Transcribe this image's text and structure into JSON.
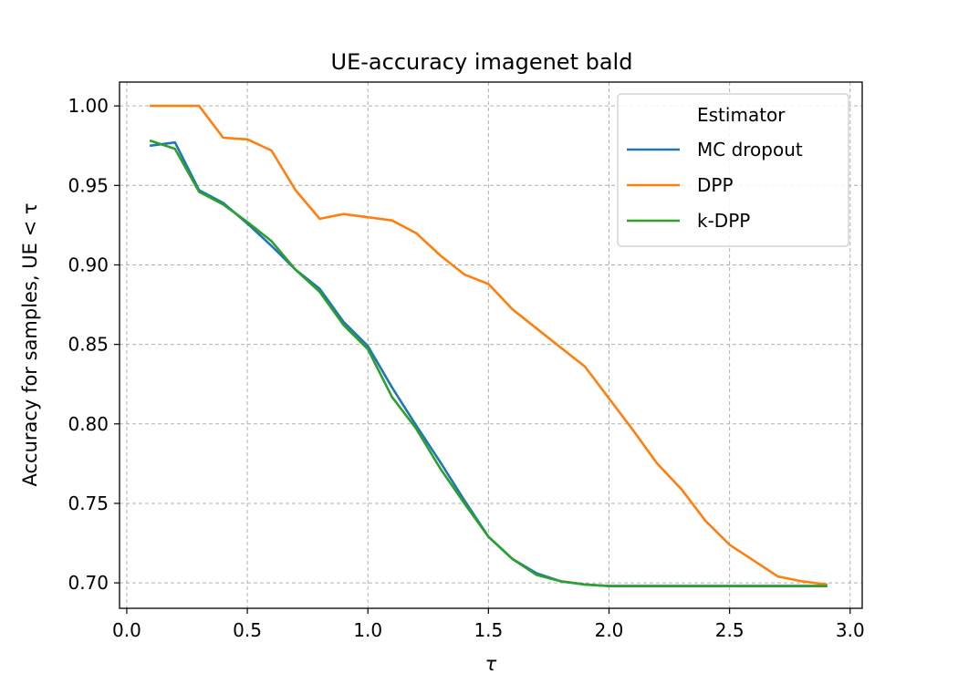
{
  "chart_data": {
    "type": "line",
    "title": "UE-accuracy imagenet bald",
    "xlabel": "τ",
    "ylabel": "Accuracy for samples, UE < τ",
    "xlim": [
      -0.03,
      3.05
    ],
    "ylim": [
      0.684,
      1.015
    ],
    "xticks": [
      "0.0",
      "0.5",
      "1.0",
      "1.5",
      "2.0",
      "2.5",
      "3.0"
    ],
    "xtick_values": [
      0,
      0.5,
      1.0,
      1.5,
      2.0,
      2.5,
      3.0
    ],
    "yticks": [
      "0.70",
      "0.75",
      "0.80",
      "0.85",
      "0.90",
      "0.95",
      "1.00"
    ],
    "ytick_values": [
      0.7,
      0.75,
      0.8,
      0.85,
      0.9,
      0.95,
      1.0
    ],
    "grid": true,
    "legend": {
      "title": "Estimator",
      "placement": "top-right"
    },
    "x": [
      0.1,
      0.2,
      0.3,
      0.4,
      0.5,
      0.6,
      0.7,
      0.8,
      0.9,
      1.0,
      1.1,
      1.2,
      1.3,
      1.4,
      1.5,
      1.6,
      1.7,
      1.8,
      1.9,
      2.0,
      2.1,
      2.2,
      2.3,
      2.4,
      2.5,
      2.6,
      2.7,
      2.8,
      2.9
    ],
    "series": [
      {
        "name": "MC dropout",
        "color": "#1f77b4",
        "values": [
          0.975,
          0.977,
          0.947,
          0.939,
          0.926,
          0.912,
          0.897,
          0.885,
          0.864,
          0.849,
          0.823,
          0.799,
          0.776,
          0.752,
          0.729,
          0.715,
          0.706,
          0.701,
          0.699,
          0.698,
          0.698,
          0.698,
          0.698,
          0.698,
          0.698,
          0.698,
          0.698,
          0.698,
          0.698
        ]
      },
      {
        "name": "DPP",
        "color": "#ff7f0e",
        "values": [
          1.0,
          1.0,
          1.0,
          0.98,
          0.979,
          0.972,
          0.947,
          0.929,
          0.932,
          0.93,
          0.928,
          0.92,
          0.906,
          0.894,
          0.888,
          0.872,
          0.86,
          0.848,
          0.836,
          0.816,
          0.796,
          0.775,
          0.759,
          0.739,
          0.724,
          0.714,
          0.704,
          0.701,
          0.699
        ]
      },
      {
        "name": "k-DPP",
        "color": "#2ca02c",
        "values": [
          0.978,
          0.973,
          0.946,
          0.938,
          0.927,
          0.915,
          0.897,
          0.883,
          0.862,
          0.847,
          0.817,
          0.797,
          0.772,
          0.75,
          0.729,
          0.715,
          0.705,
          0.701,
          0.699,
          0.698,
          0.698,
          0.698,
          0.698,
          0.698,
          0.698,
          0.698,
          0.698,
          0.698,
          0.698
        ]
      }
    ]
  }
}
